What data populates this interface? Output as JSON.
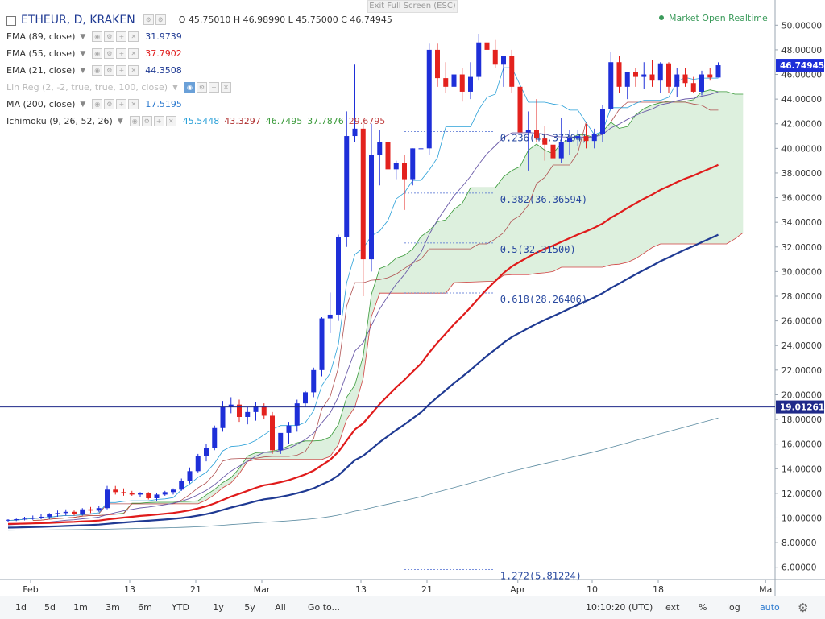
{
  "header": {
    "symbol": "ETHEUR, D, KRAKEN",
    "ohlc": "O 45.75010  H 46.98990  L 45.75000  C 46.74945",
    "exit_fullscreen": "Exit Full Screen (ESC)",
    "market_status": "Market Open  Realtime"
  },
  "indicators": [
    {
      "label": "EMA (89, close)",
      "values": [
        {
          "v": "31.9739",
          "color": "#1f3a93"
        }
      ]
    },
    {
      "label": "EMA (55, close)",
      "values": [
        {
          "v": "37.7902",
          "color": "#e01b1b"
        }
      ]
    },
    {
      "label": "EMA (21, close)",
      "values": [
        {
          "v": "44.3508",
          "color": "#1f3a93"
        }
      ]
    },
    {
      "label": "Lin Reg (2, -2, true, true, 100, close)",
      "values": [],
      "muted": true
    },
    {
      "label": "MA (200, close)",
      "values": [
        {
          "v": "17.5195",
          "color": "#2e7bcf"
        }
      ]
    },
    {
      "label": "Ichimoku (9, 26, 52, 26)",
      "values": [
        {
          "v": "45.5448",
          "color": "#2aa0d8"
        },
        {
          "v": "43.3297",
          "color": "#b03030"
        },
        {
          "v": "46.7495",
          "color": "#3a9a3a"
        },
        {
          "v": "37.7876",
          "color": "#3a9a3a"
        },
        {
          "v": "29.6795",
          "color": "#c04040"
        }
      ]
    }
  ],
  "toolbar": {
    "timeframes": [
      "1d",
      "5d",
      "1m",
      "3m",
      "6m",
      "YTD",
      "1y",
      "5y",
      "All"
    ],
    "goto": "Go to...",
    "clock": "10:10:20 (UTC)",
    "right": [
      "ext",
      "%",
      "log",
      "auto"
    ]
  },
  "colors": {
    "up": "#1e2fd8",
    "down": "#e3221e",
    "ema89": "#1f3a93",
    "ema55": "#e01b1b",
    "ema21": "#6a5aa8",
    "ma200": "#5a8aa0",
    "tenkan": "#2aa0d8",
    "kijun": "#b05050",
    "cloud": "#cfead0"
  },
  "chart_data": {
    "type": "candlestick",
    "ylim": [
      5,
      51
    ],
    "yticks": [
      "50.00000",
      "48.00000",
      "46.00000",
      "44.00000",
      "42.00000",
      "40.00000",
      "38.00000",
      "36.00000",
      "34.00000",
      "32.00000",
      "30.00000",
      "28.00000",
      "26.00000",
      "24.00000",
      "22.00000",
      "20.00000",
      "18.00000",
      "16.00000",
      "14.00000",
      "12.00000",
      "10.00000",
      "8.00000",
      "6.00000"
    ],
    "xticks": [
      {
        "label": "Feb",
        "day": 0
      },
      {
        "label": "13",
        "day": 12
      },
      {
        "label": "21",
        "day": 20
      },
      {
        "label": "Mar",
        "day": 28
      },
      {
        "label": "13",
        "day": 40
      },
      {
        "label": "21",
        "day": 48
      },
      {
        "label": "Apr",
        "day": 59
      },
      {
        "label": "10",
        "day": 68
      },
      {
        "label": "18",
        "day": 76
      },
      {
        "label": "Ma",
        "day": 89
      }
    ],
    "candles": [
      [
        9.8,
        9.9,
        9.7,
        9.85
      ],
      [
        9.85,
        9.95,
        9.75,
        9.9
      ],
      [
        9.9,
        10.1,
        9.8,
        9.95
      ],
      [
        9.95,
        10.2,
        9.85,
        10.0
      ],
      [
        10.0,
        10.3,
        9.9,
        10.1
      ],
      [
        10.1,
        10.4,
        9.9,
        10.3
      ],
      [
        10.3,
        10.6,
        10.1,
        10.4
      ],
      [
        10.4,
        10.7,
        10.2,
        10.5
      ],
      [
        10.5,
        10.6,
        10.2,
        10.3
      ],
      [
        10.3,
        10.8,
        10.2,
        10.7
      ],
      [
        10.7,
        10.9,
        10.4,
        10.6
      ],
      [
        10.6,
        11.0,
        10.5,
        10.8
      ],
      [
        10.8,
        12.6,
        10.7,
        12.3
      ],
      [
        12.3,
        12.6,
        11.9,
        12.1
      ],
      [
        12.1,
        12.4,
        11.8,
        12.0
      ],
      [
        12.0,
        12.2,
        11.8,
        11.9
      ],
      [
        11.9,
        12.1,
        11.7,
        12.0
      ],
      [
        12.0,
        12.1,
        11.5,
        11.6
      ],
      [
        11.6,
        12.0,
        11.4,
        11.9
      ],
      [
        11.9,
        12.2,
        11.8,
        12.1
      ],
      [
        12.1,
        12.4,
        11.9,
        12.3
      ],
      [
        12.3,
        13.2,
        12.2,
        13.0
      ],
      [
        13.0,
        14.1,
        12.8,
        13.8
      ],
      [
        13.8,
        15.2,
        13.7,
        15.0
      ],
      [
        15.0,
        16.0,
        14.6,
        15.7
      ],
      [
        15.7,
        17.5,
        15.5,
        17.3
      ],
      [
        17.3,
        19.5,
        17.0,
        19.0
      ],
      [
        19.0,
        19.8,
        18.5,
        19.2
      ],
      [
        19.2,
        19.6,
        17.8,
        18.2
      ],
      [
        18.2,
        19.0,
        17.6,
        18.6
      ],
      [
        18.6,
        19.4,
        17.9,
        19.1
      ],
      [
        19.1,
        19.3,
        18.0,
        18.3
      ],
      [
        18.3,
        18.6,
        15.2,
        15.5
      ],
      [
        15.5,
        16.8,
        15.2,
        16.9
      ],
      [
        16.9,
        17.8,
        16.0,
        17.5
      ],
      [
        17.5,
        19.6,
        17.0,
        19.3
      ],
      [
        19.3,
        20.3,
        19.0,
        20.2
      ],
      [
        20.2,
        22.2,
        19.8,
        22.0
      ],
      [
        22.0,
        26.3,
        21.5,
        26.2
      ],
      [
        26.2,
        28.3,
        25.0,
        26.5
      ],
      [
        26.5,
        33.0,
        26.0,
        32.8
      ],
      [
        32.8,
        43.0,
        32.0,
        41.0
      ],
      [
        41.0,
        46.8,
        40.5,
        41.6
      ],
      [
        41.6,
        42.0,
        28.0,
        31.0
      ],
      [
        31.0,
        42.0,
        30.0,
        39.5
      ],
      [
        39.5,
        41.5,
        37.0,
        40.5
      ],
      [
        40.5,
        41.0,
        36.5,
        38.3
      ],
      [
        38.3,
        39.0,
        37.5,
        38.8
      ],
      [
        38.8,
        39.5,
        35.0,
        37.5
      ],
      [
        37.5,
        40.0,
        37.0,
        40.0
      ],
      [
        40.0,
        41.5,
        39.0,
        40.0
      ],
      [
        40.0,
        48.5,
        39.5,
        48.0
      ],
      [
        48.0,
        48.5,
        45.0,
        45.7
      ],
      [
        45.7,
        47.0,
        44.5,
        45.0
      ],
      [
        45.0,
        46.0,
        44.0,
        46.0
      ],
      [
        46.0,
        46.5,
        43.8,
        44.6
      ],
      [
        44.6,
        47.0,
        44.0,
        45.8
      ],
      [
        45.8,
        49.3,
        45.5,
        48.6
      ],
      [
        48.6,
        49.0,
        47.5,
        48.0
      ],
      [
        48.0,
        48.8,
        46.5,
        46.8
      ],
      [
        46.8,
        47.5,
        45.0,
        47.5
      ],
      [
        47.5,
        48.0,
        44.5,
        45.0
      ],
      [
        45.0,
        46.0,
        41.0,
        41.3
      ],
      [
        41.3,
        43.0,
        38.2,
        41.5
      ],
      [
        41.5,
        44.0,
        40.5,
        40.8
      ],
      [
        40.8,
        41.8,
        39.0,
        40.3
      ],
      [
        40.3,
        42.0,
        38.8,
        39.2
      ],
      [
        39.2,
        42.5,
        38.8,
        40.5
      ],
      [
        40.5,
        41.5,
        39.5,
        40.8
      ],
      [
        40.8,
        41.5,
        40.2,
        41.0
      ],
      [
        41.0,
        42.0,
        40.0,
        40.6
      ],
      [
        40.6,
        41.6,
        40.0,
        41.2
      ],
      [
        41.2,
        43.5,
        40.5,
        43.2
      ],
      [
        43.2,
        47.8,
        43.0,
        47.0
      ],
      [
        47.0,
        47.5,
        44.5,
        45.0
      ],
      [
        45.0,
        46.0,
        44.0,
        46.2
      ],
      [
        46.2,
        46.5,
        45.0,
        45.8
      ],
      [
        45.8,
        47.0,
        44.8,
        46.0
      ],
      [
        46.0,
        47.2,
        45.0,
        45.5
      ],
      [
        45.5,
        47.0,
        44.5,
        46.9
      ],
      [
        46.9,
        47.0,
        44.5,
        45.0
      ],
      [
        45.0,
        46.5,
        44.2,
        46.0
      ],
      [
        46.0,
        46.5,
        45.0,
        45.3
      ],
      [
        45.3,
        45.8,
        44.5,
        44.6
      ],
      [
        44.6,
        46.3,
        44.3,
        46.0
      ],
      [
        46.0,
        46.5,
        45.5,
        45.75
      ],
      [
        45.75,
        46.99,
        45.75,
        46.75
      ]
    ],
    "fib_levels": [
      {
        "label": "0.236(41.37304)",
        "value": 41.37
      },
      {
        "label": "0.382(36.36594)",
        "value": 36.37
      },
      {
        "label": "0.5(32.31500)",
        "value": 32.32
      },
      {
        "label": "0.618(28.26406)",
        "value": 28.26
      },
      {
        "label": "1.272(5.81224)",
        "value": 5.81
      }
    ],
    "price_labels": [
      {
        "label": "46.74945",
        "value": 46.75,
        "kind": "last"
      },
      {
        "label": "19.01261",
        "value": 19.01,
        "kind": "crosshair"
      }
    ]
  }
}
